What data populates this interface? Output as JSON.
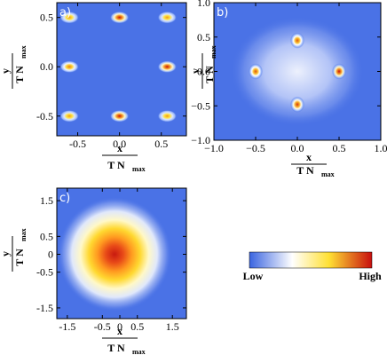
{
  "colors": {
    "low": "#3a64e0",
    "mid1": "#ffffff",
    "mid2": "#ffd21a",
    "high": "#c80f0f"
  },
  "colorbar": {
    "low_label": "Low",
    "high_label": "High"
  },
  "chart_data": [
    {
      "type": "heatmap",
      "panel_label": "a)",
      "xlabel_top": "x",
      "xlabel_bottom": "T N",
      "xlabel_sub": "max",
      "ylabel_top": "y",
      "ylabel_bottom": "T N",
      "ylabel_sub": "max",
      "xlim": [
        -0.75,
        0.8
      ],
      "ylim": [
        -0.7,
        0.65
      ],
      "xticks": [
        "-0.5",
        "0.0",
        "0.5"
      ],
      "xtick_values": [
        -0.5,
        0.0,
        0.5
      ],
      "yticks": [
        "0.5",
        "0.0",
        "-0.5"
      ],
      "ytick_values": [
        0.5,
        0.0,
        -0.5
      ],
      "peaks": [
        {
          "x": -0.6,
          "y": 0.5,
          "intensity": 0.8
        },
        {
          "x": 0.0,
          "y": 0.5,
          "intensity": 1.0
        },
        {
          "x": 0.57,
          "y": 0.5,
          "intensity": 0.8
        },
        {
          "x": -0.6,
          "y": 0.0,
          "intensity": 0.85
        },
        {
          "x": 0.57,
          "y": 0.0,
          "intensity": 1.0
        },
        {
          "x": -0.6,
          "y": -0.5,
          "intensity": 0.8
        },
        {
          "x": 0.0,
          "y": -0.5,
          "intensity": 1.0
        },
        {
          "x": 0.57,
          "y": -0.5,
          "intensity": 0.8
        }
      ]
    },
    {
      "type": "heatmap",
      "panel_label": "b)",
      "xlabel_top": "x",
      "xlabel_bottom": "T N",
      "xlabel_sub": "max",
      "ylabel_top": "y",
      "ylabel_bottom": "T N",
      "ylabel_sub": "max",
      "xlim": [
        -1.0,
        1.0
      ],
      "ylim": [
        -1.0,
        1.0
      ],
      "xticks": [
        "−1.0",
        "−0.5",
        "0.0",
        "0.5",
        "1.0"
      ],
      "xtick_values": [
        -1.0,
        -0.5,
        0.0,
        0.5,
        1.0
      ],
      "yticks": [
        "1.0",
        "0.5",
        "0.0",
        "−0.5",
        "−1.0"
      ],
      "ytick_values": [
        1.0,
        0.5,
        0.0,
        -0.5,
        -1.0
      ],
      "peaks": [
        {
          "x": 0.0,
          "y": 0.45,
          "intensity": 0.9
        },
        {
          "x": -0.5,
          "y": 0.0,
          "intensity": 0.9
        },
        {
          "x": 0.5,
          "y": 0.0,
          "intensity": 1.0
        },
        {
          "x": 0.0,
          "y": -0.48,
          "intensity": 0.95
        }
      ],
      "background_blob": {
        "x": 0.0,
        "y": 0.0,
        "intensity": 0.35
      }
    },
    {
      "type": "heatmap",
      "panel_label": "c)",
      "xlabel_top": "x",
      "xlabel_bottom": "T N",
      "xlabel_sub": "max",
      "ylabel_top": "y",
      "ylabel_bottom": "T N",
      "ylabel_sub": "max",
      "xlim": [
        -1.8,
        1.9
      ],
      "ylim": [
        -1.8,
        1.85
      ],
      "xticks": [
        "-1.5",
        "-0.5",
        "0",
        "0.5",
        "1.5"
      ],
      "xtick_values": [
        -1.5,
        -0.5,
        0.0,
        0.5,
        1.5
      ],
      "yticks": [
        "1.5",
        "0.5",
        "0",
        "-0.5",
        "-1.5"
      ],
      "ytick_values": [
        1.5,
        0.5,
        0.0,
        -0.5,
        -1.5
      ],
      "center_blob": {
        "x": 0.0,
        "y": 0.0,
        "intensity": 1.0
      }
    }
  ]
}
